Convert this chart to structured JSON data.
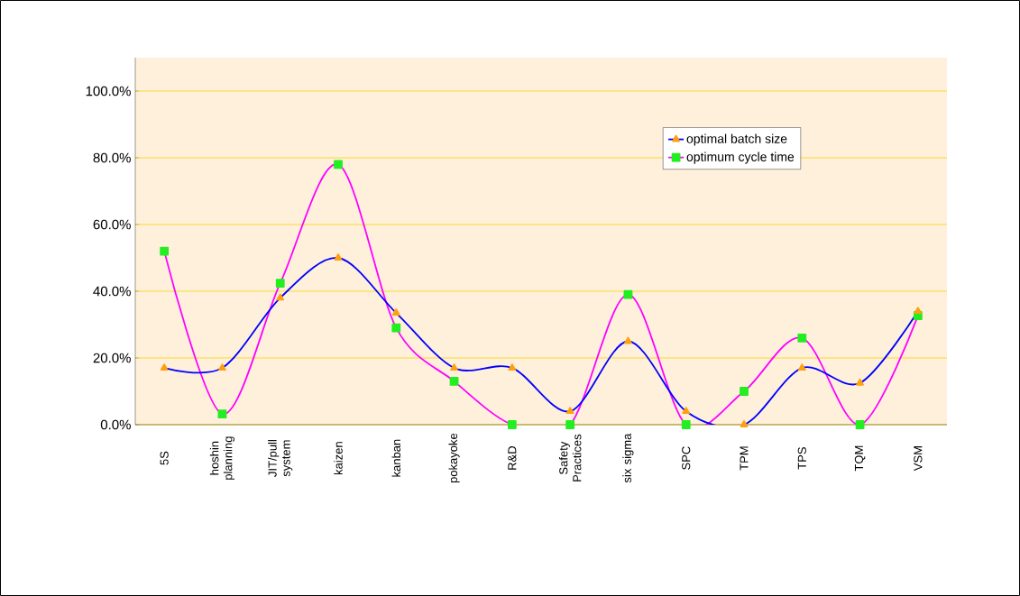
{
  "chart_data": {
    "type": "line",
    "categories": [
      "5S",
      "hoshin planning",
      "JIT/pull system",
      "kaizen",
      "kanban",
      "pokayoke",
      "R&D",
      "Safety Practices",
      "six sigma",
      "SPC",
      "TPM",
      "TPS",
      "TQM",
      "VSM"
    ],
    "series": [
      {
        "name": "optimal batch size",
        "color": "#0000ff",
        "marker": "triangle",
        "values": [
          17,
          17,
          38,
          50,
          33.5,
          17,
          17,
          4,
          25,
          4,
          0,
          17,
          12.5,
          34
        ]
      },
      {
        "name": "optimum cycle time",
        "color": "#ff00ff",
        "marker": "square",
        "values": [
          52,
          3.2,
          42.4,
          78,
          29,
          13,
          0,
          0,
          39,
          0,
          10,
          26,
          0,
          32.7
        ]
      }
    ],
    "ylim": [
      0,
      110
    ],
    "yticks": [
      {
        "value": 0,
        "label": "0.0%"
      },
      {
        "value": 20,
        "label": "20.0%"
      },
      {
        "value": 40,
        "label": "40.0%"
      },
      {
        "value": 60,
        "label": "60.0%"
      },
      {
        "value": 80,
        "label": "80.0%"
      },
      {
        "value": 100,
        "label": "100.0%"
      }
    ],
    "grid": "y",
    "legend": "top right"
  }
}
